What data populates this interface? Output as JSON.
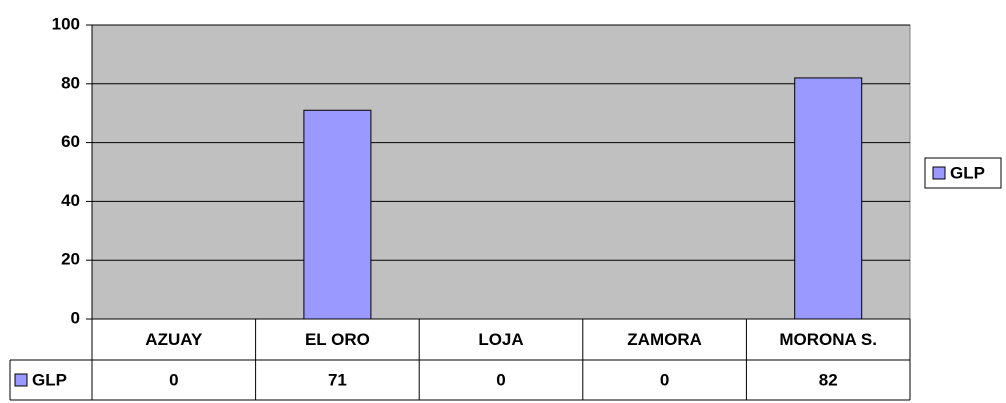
{
  "chart_data": {
    "type": "bar",
    "categories": [
      "AZUAY",
      "EL ORO",
      "LOJA",
      "ZAMORA",
      "MORONA S."
    ],
    "series": [
      {
        "name": "GLP",
        "color": "#9999ff",
        "values": [
          0,
          71,
          0,
          0,
          82
        ]
      }
    ],
    "ylim": [
      0,
      100
    ],
    "yticks": [
      0,
      20,
      40,
      60,
      80,
      100
    ],
    "grid": true,
    "legend": "right",
    "data_table": true
  }
}
